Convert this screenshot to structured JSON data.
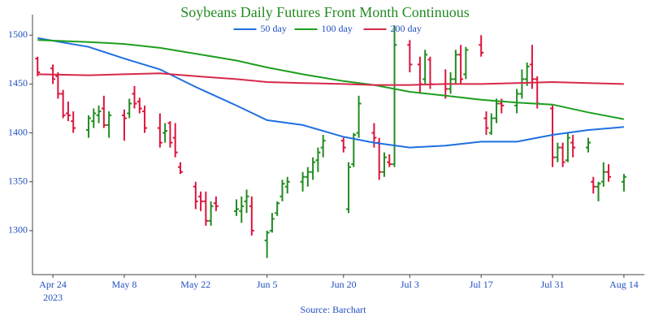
{
  "chart_data": {
    "type": "ohlc",
    "title": "Soybeans Daily Futures Front Month Continuous",
    "annotation": "Source: Barchart",
    "x": [
      "2023-04-21",
      "2023-04-24",
      "2023-04-25",
      "2023-04-26",
      "2023-04-27",
      "2023-04-28",
      "2023-05-01",
      "2023-05-02",
      "2023-05-03",
      "2023-05-04",
      "2023-05-05",
      "2023-05-08",
      "2023-05-09",
      "2023-05-10",
      "2023-05-11",
      "2023-05-12",
      "2023-05-15",
      "2023-05-16",
      "2023-05-17",
      "2023-05-18",
      "2023-05-19",
      "2023-05-22",
      "2023-05-23",
      "2023-05-24",
      "2023-05-25",
      "2023-05-26",
      "2023-05-30",
      "2023-05-31",
      "2023-06-01",
      "2023-06-02",
      "2023-06-05",
      "2023-06-06",
      "2023-06-07",
      "2023-06-08",
      "2023-06-09",
      "2023-06-12",
      "2023-06-13",
      "2023-06-14",
      "2023-06-15",
      "2023-06-16",
      "2023-06-20",
      "2023-06-21",
      "2023-06-22",
      "2023-06-23",
      "2023-06-26",
      "2023-06-27",
      "2023-06-28",
      "2023-06-29",
      "2023-06-30",
      "2023-07-03",
      "2023-07-05",
      "2023-07-06",
      "2023-07-07",
      "2023-07-10",
      "2023-07-11",
      "2023-07-12",
      "2023-07-13",
      "2023-07-14",
      "2023-07-17",
      "2023-07-18",
      "2023-07-19",
      "2023-07-20",
      "2023-07-21",
      "2023-07-24",
      "2023-07-25",
      "2023-07-26",
      "2023-07-27",
      "2023-07-28",
      "2023-07-31",
      "2023-08-01",
      "2023-08-02",
      "2023-08-03",
      "2023-08-04",
      "2023-08-07",
      "2023-08-08",
      "2023-08-09",
      "2023-08-10",
      "2023-08-11",
      "2023-08-14"
    ],
    "open": [
      1476,
      1466,
      1458,
      1440,
      1420,
      1412,
      1403,
      1412,
      1418,
      1425,
      1408,
      1418,
      1420,
      1440,
      1432,
      1422,
      1405,
      1400,
      1410,
      1395,
      1365,
      1345,
      1335,
      1330,
      1310,
      1328,
      1320,
      1320,
      1330,
      1325,
      1290,
      1300,
      1318,
      1335,
      1345,
      1350,
      1355,
      1360,
      1372,
      1385,
      1392,
      1322,
      1368,
      1400,
      1400,
      1390,
      1360,
      1370,
      1368,
      1490,
      1470,
      1455,
      1475,
      1450,
      1445,
      1455,
      1480,
      1460,
      1490,
      1415,
      1400,
      1415,
      1430,
      1428,
      1440,
      1455,
      1470,
      1455,
      1425,
      1375,
      1385,
      1372,
      1390,
      1385,
      1350,
      1345,
      1350,
      1360,
      1350
    ],
    "high": [
      1478,
      1470,
      1462,
      1444,
      1432,
      1422,
      1418,
      1425,
      1428,
      1438,
      1422,
      1424,
      1435,
      1448,
      1436,
      1428,
      1420,
      1410,
      1412,
      1410,
      1370,
      1350,
      1340,
      1340,
      1330,
      1335,
      1332,
      1335,
      1342,
      1335,
      1300,
      1318,
      1330,
      1352,
      1355,
      1360,
      1365,
      1375,
      1385,
      1398,
      1395,
      1370,
      1400,
      1438,
      1410,
      1395,
      1380,
      1378,
      1510,
      1495,
      1478,
      1485,
      1478,
      1465,
      1462,
      1485,
      1490,
      1488,
      1500,
      1422,
      1420,
      1435,
      1435,
      1445,
      1465,
      1472,
      1490,
      1458,
      1428,
      1390,
      1390,
      1400,
      1398,
      1395,
      1355,
      1350,
      1370,
      1368,
      1358
    ],
    "low": [
      1458,
      1450,
      1435,
      1415,
      1412,
      1400,
      1395,
      1405,
      1410,
      1405,
      1395,
      1392,
      1415,
      1425,
      1420,
      1400,
      1385,
      1390,
      1385,
      1375,
      1358,
      1322,
      1320,
      1305,
      1305,
      1320,
      1315,
      1308,
      1318,
      1295,
      1272,
      1298,
      1315,
      1330,
      1338,
      1340,
      1345,
      1352,
      1360,
      1375,
      1380,
      1318,
      1365,
      1395,
      1385,
      1352,
      1355,
      1365,
      1365,
      1462,
      1440,
      1450,
      1445,
      1435,
      1440,
      1450,
      1450,
      1455,
      1478,
      1398,
      1398,
      1410,
      1420,
      1420,
      1435,
      1448,
      1445,
      1425,
      1365,
      1370,
      1365,
      1370,
      1375,
      1380,
      1338,
      1330,
      1345,
      1350,
      1340
    ],
    "close": [
      1462,
      1455,
      1440,
      1418,
      1418,
      1405,
      1415,
      1420,
      1422,
      1408,
      1418,
      1415,
      1430,
      1430,
      1425,
      1405,
      1390,
      1402,
      1390,
      1380,
      1360,
      1330,
      1330,
      1310,
      1325,
      1325,
      1322,
      1325,
      1335,
      1300,
      1298,
      1312,
      1328,
      1348,
      1350,
      1355,
      1360,
      1370,
      1380,
      1392,
      1385,
      1365,
      1398,
      1430,
      1395,
      1360,
      1375,
      1368,
      1490,
      1470,
      1450,
      1480,
      1450,
      1445,
      1455,
      1480,
      1455,
      1485,
      1482,
      1405,
      1415,
      1430,
      1428,
      1440,
      1455,
      1468,
      1455,
      1430,
      1375,
      1385,
      1370,
      1395,
      1385,
      1390,
      1345,
      1348,
      1360,
      1355,
      1355
    ],
    "increasing_color": "#228b22",
    "decreasing_color": "#dc143c",
    "series": [
      {
        "name": "50 day",
        "color": "#1f6fe0",
        "x": [
          "2023-04-21",
          "2023-05-01",
          "2023-05-08",
          "2023-05-15",
          "2023-05-22",
          "2023-05-30",
          "2023-06-05",
          "2023-06-12",
          "2023-06-20",
          "2023-06-26",
          "2023-07-03",
          "2023-07-10",
          "2023-07-17",
          "2023-07-24",
          "2023-07-31",
          "2023-08-07",
          "2023-08-14"
        ],
        "values": [
          1497,
          1488,
          1476,
          1465,
          1447,
          1428,
          1413,
          1408,
          1396,
          1390,
          1385,
          1387,
          1391,
          1391,
          1398,
          1403,
          1406
        ]
      },
      {
        "name": "100 day",
        "color": "#1e9e1e",
        "x": [
          "2023-04-21",
          "2023-05-01",
          "2023-05-08",
          "2023-05-15",
          "2023-05-22",
          "2023-05-30",
          "2023-06-05",
          "2023-06-12",
          "2023-06-20",
          "2023-06-26",
          "2023-07-03",
          "2023-07-10",
          "2023-07-17",
          "2023-07-24",
          "2023-07-31",
          "2023-08-07",
          "2023-08-14"
        ],
        "values": [
          1495,
          1493,
          1491,
          1487,
          1481,
          1474,
          1467,
          1460,
          1453,
          1449,
          1442,
          1438,
          1434,
          1431,
          1429,
          1421,
          1414
        ]
      },
      {
        "name": "200 day",
        "color": "#d6284a",
        "x": [
          "2023-04-21",
          "2023-05-01",
          "2023-05-08",
          "2023-05-15",
          "2023-05-22",
          "2023-05-30",
          "2023-06-05",
          "2023-06-12",
          "2023-06-20",
          "2023-06-26",
          "2023-07-03",
          "2023-07-10",
          "2023-07-17",
          "2023-07-24",
          "2023-07-31",
          "2023-08-07",
          "2023-08-14"
        ],
        "values": [
          1460,
          1459,
          1460,
          1461,
          1458,
          1455,
          1452,
          1451,
          1450,
          1449,
          1449,
          1450,
          1450,
          1451,
          1452,
          1451,
          1450
        ]
      }
    ],
    "xlim": [
      "2023-04-20",
      "2023-08-18"
    ],
    "xticks": [
      {
        "value": "2023-04-24",
        "label": "Apr 24"
      },
      {
        "value": "2023-05-08",
        "label": "May 8"
      },
      {
        "value": "2023-05-22",
        "label": "May 22"
      },
      {
        "value": "2023-06-05",
        "label": "Jun 5"
      },
      {
        "value": "2023-06-20",
        "label": "Jun 20"
      },
      {
        "value": "2023-07-03",
        "label": "Jul 3"
      },
      {
        "value": "2023-07-17",
        "label": "Jul 17"
      },
      {
        "value": "2023-07-31",
        "label": "Jul 31"
      },
      {
        "value": "2023-08-14",
        "label": "Aug 14"
      }
    ],
    "xaxis_year": "2023",
    "ylim": [
      1255,
      1521
    ],
    "yticks": [
      1300,
      1350,
      1400,
      1450,
      1500
    ],
    "legend": "top"
  }
}
